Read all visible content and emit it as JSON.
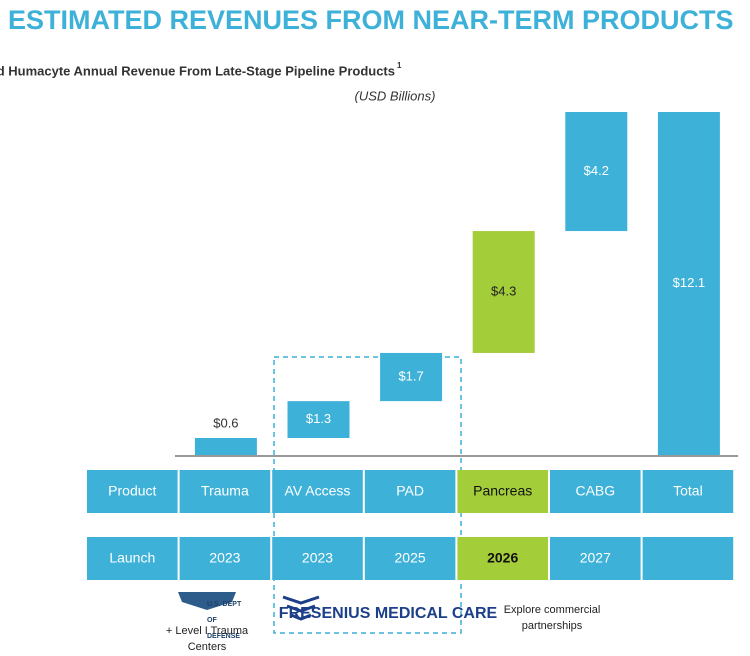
{
  "chart_data": {
    "type": "waterfall",
    "title": "ESTIMATED REVENUES FROM NEAR-TERM PRODUCTS",
    "subtitle": "Projected Humacyte Annual Revenue From Late-Stage Pipeline Products",
    "footnote_marker": "1",
    "unit_label": "(USD Billions)",
    "categories": [
      "Trauma",
      "AV Access",
      "PAD",
      "Pancreas",
      "CABG",
      "Total"
    ],
    "values": [
      0.6,
      1.3,
      1.7,
      4.3,
      4.2,
      12.1
    ],
    "value_labels": [
      "$0.6",
      "$1.3",
      "$1.7",
      "$4.3",
      "$4.2",
      "$12.1"
    ],
    "colors": [
      "#3db1d8",
      "#3db1d8",
      "#3db1d8",
      "#a4cd3a",
      "#3db1d8",
      "#3db1d8"
    ],
    "total_index": 5,
    "row_labels": [
      "Product",
      "Launch"
    ],
    "launch": [
      "2023",
      "2023",
      "2025",
      "2026",
      "2027",
      null
    ],
    "annotations": {
      "dod": "U.S. DEPT OF DEFENSE",
      "trauma_note": "+ Level I Trauma Centers",
      "fresenius": "FRESENIUS MEDICAL CARE",
      "pancreas_note": "Explore commercial partnerships"
    }
  }
}
